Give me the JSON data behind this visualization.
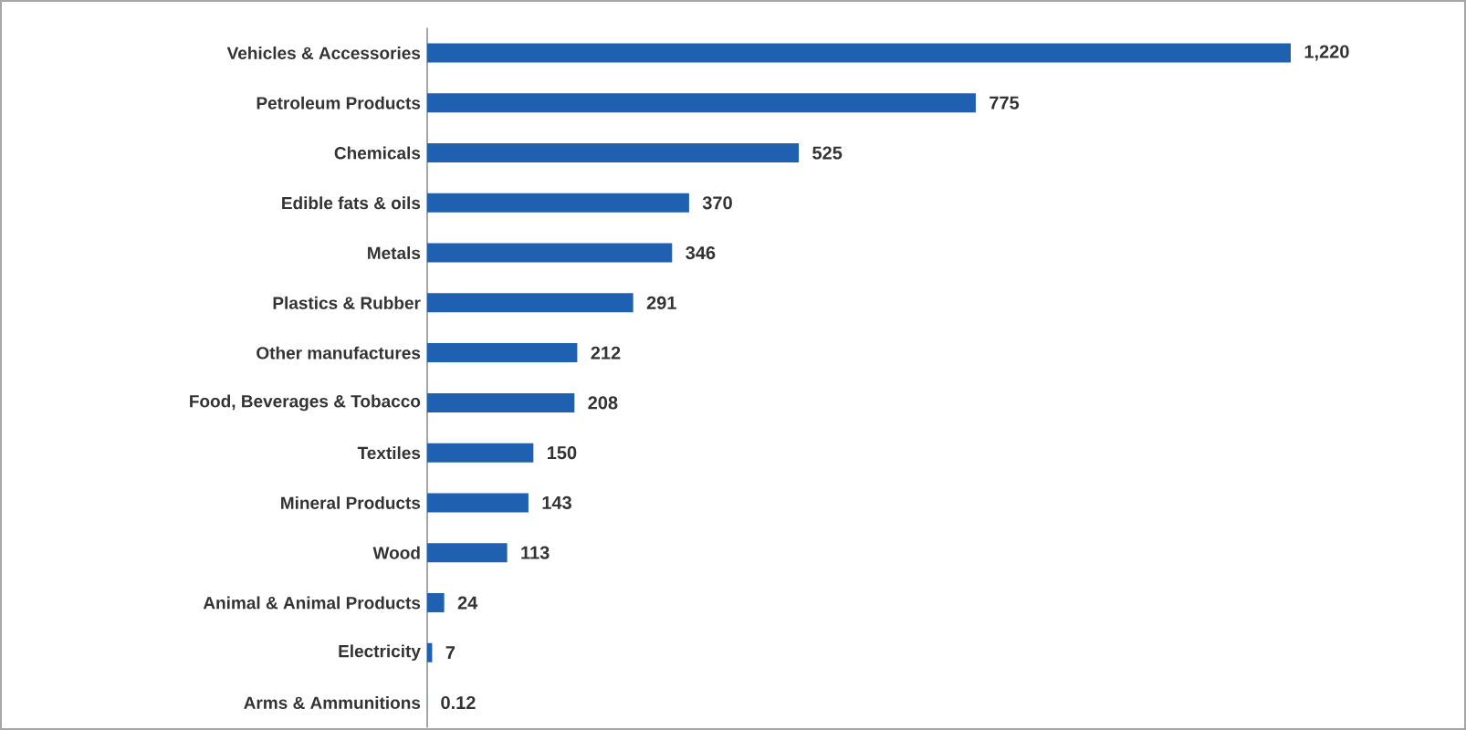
{
  "chart_data": {
    "type": "bar",
    "orientation": "horizontal",
    "color": "#2060b0",
    "categories": [
      "Vehicles & Accessories",
      "Petroleum Products",
      "Chemicals",
      "Edible fats & oils",
      "Metals",
      "Plastics & Rubber",
      "Other manufactures",
      "Food, Beverages & Tobacco",
      "Textiles",
      "Mineral Products",
      "Wood",
      "Animal & Animal Products",
      "Electricity",
      "Arms & Ammunitions"
    ],
    "values": [
      1220,
      775,
      525,
      370,
      346,
      291,
      212,
      208,
      150,
      143,
      113,
      24,
      7,
      0.12
    ],
    "value_labels": [
      "1,220",
      "775",
      "525",
      "370",
      "346",
      "291",
      "212",
      "208",
      "150",
      "143",
      "113",
      "24",
      "7",
      "0.12"
    ]
  }
}
